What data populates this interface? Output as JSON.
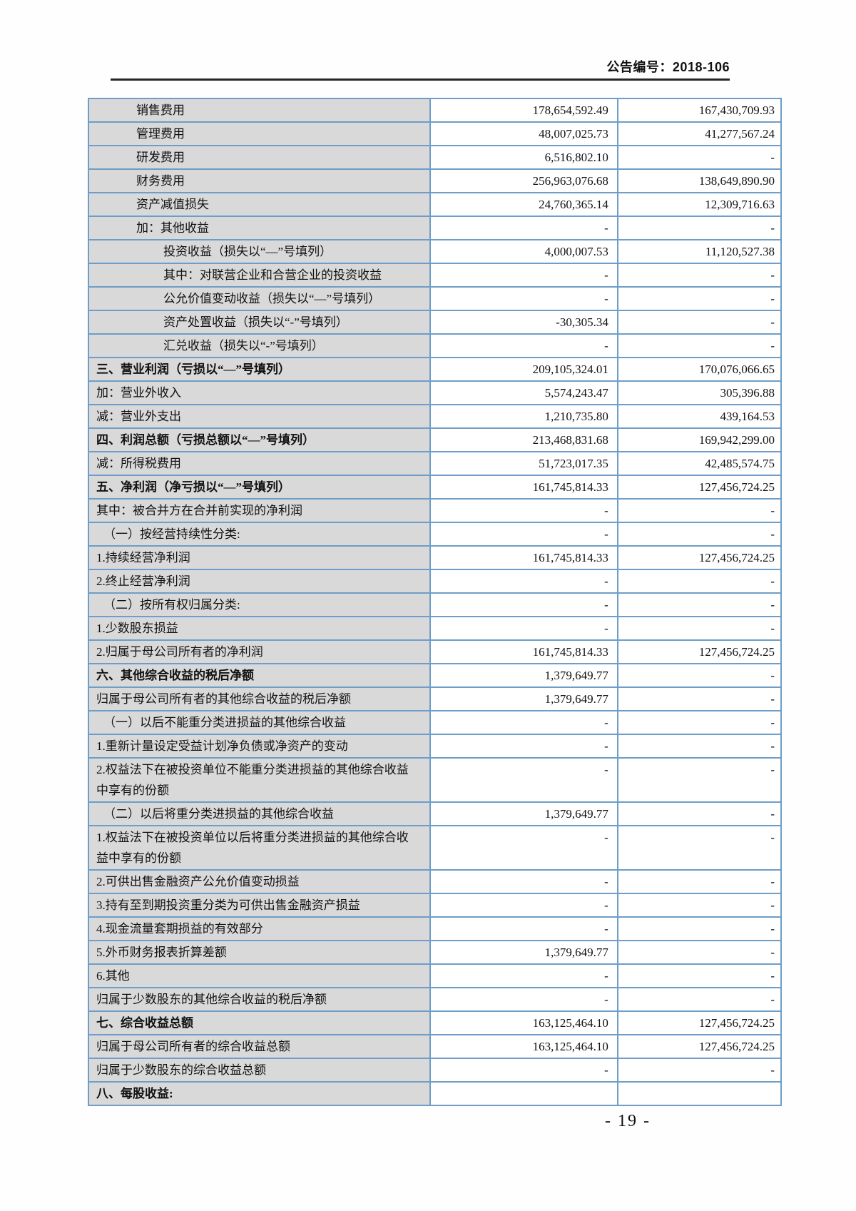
{
  "colors": {
    "table_border": "#6e9dc9",
    "label_bg": "#d9d9d9",
    "rule_color": "#262626"
  },
  "header": {
    "doc_number": "公告编号：2018-106"
  },
  "footer": {
    "page_number": "-  19  -"
  },
  "table": {
    "rows": [
      {
        "label": "销售费用",
        "indent": 2,
        "bold": false,
        "amount_current": "178,654,592.49",
        "amount_prior": "167,430,709.93"
      },
      {
        "label": "管理费用",
        "indent": 2,
        "bold": false,
        "amount_current": "48,007,025.73",
        "amount_prior": "41,277,567.24"
      },
      {
        "label": "研发费用",
        "indent": 2,
        "bold": false,
        "amount_current": "6,516,802.10",
        "amount_prior": "-"
      },
      {
        "label": "财务费用",
        "indent": 2,
        "bold": false,
        "amount_current": "256,963,076.68",
        "amount_prior": "138,649,890.90"
      },
      {
        "label": "资产减值损失",
        "indent": 2,
        "bold": false,
        "amount_current": "24,760,365.14",
        "amount_prior": "12,309,716.63"
      },
      {
        "label": "加：其他收益",
        "indent": 2,
        "bold": false,
        "amount_current": "-",
        "amount_prior": "-"
      },
      {
        "label": "投资收益（损失以“—”号填列）",
        "indent": 3,
        "bold": false,
        "amount_current": "4,000,007.53",
        "amount_prior": "11,120,527.38"
      },
      {
        "label": "其中：对联营企业和合营企业的投资收益",
        "indent": 3,
        "bold": false,
        "amount_current": "-",
        "amount_prior": "-"
      },
      {
        "label": "公允价值变动收益（损失以“—”号填列）",
        "indent": 3,
        "bold": false,
        "amount_current": "-",
        "amount_prior": "-"
      },
      {
        "label": "资产处置收益（损失以“-”号填列）",
        "indent": 3,
        "bold": false,
        "amount_current": "-30,305.34",
        "amount_prior": "-"
      },
      {
        "label": "汇兑收益（损失以“-”号填列）",
        "indent": 3,
        "bold": false,
        "amount_current": "-",
        "amount_prior": "-"
      },
      {
        "label": "三、营业利润（亏损以“—”号填列）",
        "indent": 0,
        "bold": true,
        "amount_current": "209,105,324.01",
        "amount_prior": "170,076,066.65"
      },
      {
        "label": "加：营业外收入",
        "indent": 0,
        "bold": false,
        "amount_current": "5,574,243.47",
        "amount_prior": "305,396.88"
      },
      {
        "label": "减：营业外支出",
        "indent": 0,
        "bold": false,
        "amount_current": "1,210,735.80",
        "amount_prior": "439,164.53"
      },
      {
        "label": "四、利润总额（亏损总额以“—”号填列）",
        "indent": 0,
        "bold": true,
        "amount_current": "213,468,831.68",
        "amount_prior": "169,942,299.00"
      },
      {
        "label": "减：所得税费用",
        "indent": 0,
        "bold": false,
        "amount_current": "51,723,017.35",
        "amount_prior": "42,485,574.75"
      },
      {
        "label": "五、净利润（净亏损以“—”号填列）",
        "indent": 0,
        "bold": true,
        "amount_current": "161,745,814.33",
        "amount_prior": "127,456,724.25"
      },
      {
        "label": "其中：被合并方在合并前实现的净利润",
        "indent": 0,
        "bold": false,
        "amount_current": "-",
        "amount_prior": "-"
      },
      {
        "label": "（一）按经营持续性分类:",
        "indent": 1,
        "bold": false,
        "amount_current": "-",
        "amount_prior": "-"
      },
      {
        "label": "1.持续经营净利润",
        "indent": 0,
        "bold": false,
        "amount_current": "161,745,814.33",
        "amount_prior": "127,456,724.25"
      },
      {
        "label": "2.终止经营净利润",
        "indent": 0,
        "bold": false,
        "amount_current": "-",
        "amount_prior": "-"
      },
      {
        "label": "（二）按所有权归属分类:",
        "indent": 1,
        "bold": false,
        "amount_current": "-",
        "amount_prior": "-"
      },
      {
        "label": "1.少数股东损益",
        "indent": 0,
        "bold": false,
        "amount_current": "-",
        "amount_prior": "-"
      },
      {
        "label": "2.归属于母公司所有者的净利润",
        "indent": 0,
        "bold": false,
        "amount_current": "161,745,814.33",
        "amount_prior": "127,456,724.25"
      },
      {
        "label": "六、其他综合收益的税后净额",
        "indent": 0,
        "bold": true,
        "amount_current": "1,379,649.77",
        "amount_prior": "-"
      },
      {
        "label": "归属于母公司所有者的其他综合收益的税后净额",
        "indent": 0,
        "bold": false,
        "amount_current": "1,379,649.77",
        "amount_prior": "-"
      },
      {
        "label": "（一）以后不能重分类进损益的其他综合收益",
        "indent": 1,
        "bold": false,
        "amount_current": "-",
        "amount_prior": "-"
      },
      {
        "label": "1.重新计量设定受益计划净负债或净资产的变动",
        "indent": 0,
        "bold": false,
        "amount_current": "-",
        "amount_prior": "-"
      },
      {
        "label": "2.权益法下在被投资单位不能重分类进损益的其他综合收益中享有的份额",
        "indent": 0,
        "bold": false,
        "amount_current": "-",
        "amount_prior": "-"
      },
      {
        "label": "（二）以后将重分类进损益的其他综合收益",
        "indent": 1,
        "bold": false,
        "amount_current": "1,379,649.77",
        "amount_prior": "-"
      },
      {
        "label": "1.权益法下在被投资单位以后将重分类进损益的其他综合收益中享有的份额",
        "indent": 0,
        "bold": false,
        "amount_current": "-",
        "amount_prior": "-"
      },
      {
        "label": "2.可供出售金融资产公允价值变动损益",
        "indent": 0,
        "bold": false,
        "amount_current": "-",
        "amount_prior": "-"
      },
      {
        "label": "3.持有至到期投资重分类为可供出售金融资产损益",
        "indent": 0,
        "bold": false,
        "amount_current": "-",
        "amount_prior": "-"
      },
      {
        "label": "4.现金流量套期损益的有效部分",
        "indent": 0,
        "bold": false,
        "amount_current": "-",
        "amount_prior": "-"
      },
      {
        "label": "5.外币财务报表折算差额",
        "indent": 0,
        "bold": false,
        "amount_current": "1,379,649.77",
        "amount_prior": "-"
      },
      {
        "label": "6.其他",
        "indent": 0,
        "bold": false,
        "amount_current": "-",
        "amount_prior": "-"
      },
      {
        "label": "归属于少数股东的其他综合收益的税后净额",
        "indent": 0,
        "bold": false,
        "amount_current": "-",
        "amount_prior": "-"
      },
      {
        "label": "七、综合收益总额",
        "indent": 0,
        "bold": true,
        "amount_current": "163,125,464.10",
        "amount_prior": "127,456,724.25"
      },
      {
        "label": "归属于母公司所有者的综合收益总额",
        "indent": 0,
        "bold": false,
        "amount_current": "163,125,464.10",
        "amount_prior": "127,456,724.25"
      },
      {
        "label": "归属于少数股东的综合收益总额",
        "indent": 0,
        "bold": false,
        "amount_current": "-",
        "amount_prior": "-"
      },
      {
        "label": "八、每股收益:",
        "indent": 0,
        "bold": true,
        "amount_current": "",
        "amount_prior": ""
      }
    ]
  }
}
